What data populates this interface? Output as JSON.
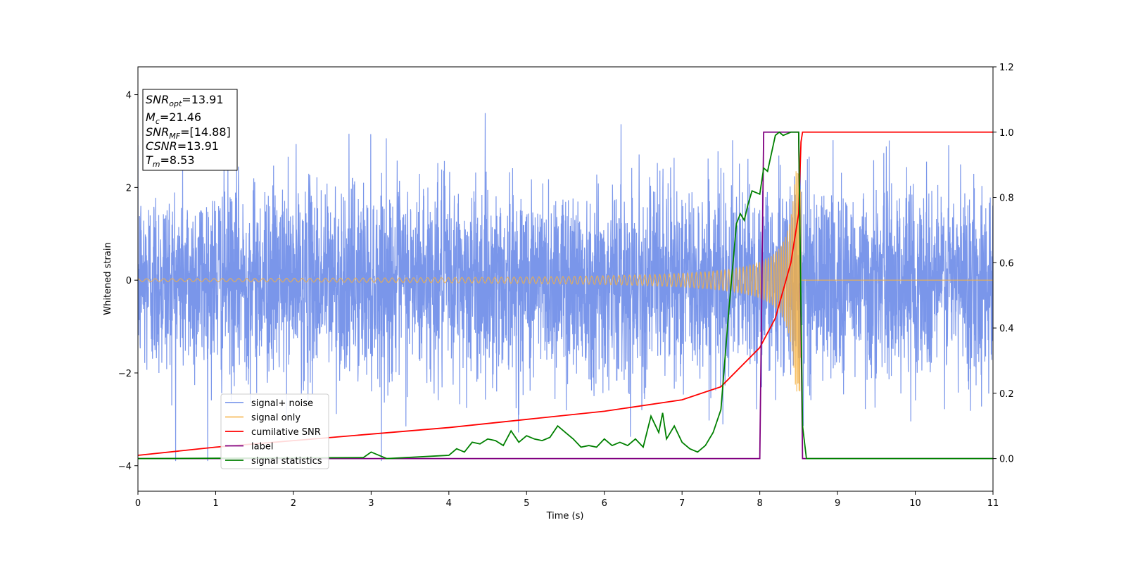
{
  "chart_data": {
    "type": "line",
    "xlabel": "Time (s)",
    "ylabel": "Whitened strain",
    "xlim": [
      0,
      11
    ],
    "ylim": [
      -4.55,
      4.6
    ],
    "y2lim": [
      -0.1,
      1.2
    ],
    "xticks": [
      0,
      1,
      2,
      3,
      4,
      5,
      6,
      7,
      8,
      9,
      10,
      11
    ],
    "yticks": [
      -4,
      -2,
      0,
      2,
      4
    ],
    "y2ticks": [
      "0.0",
      "0.2",
      "0.4",
      "0.6",
      "0.8",
      "1.0",
      "1.2"
    ],
    "grid": false,
    "legend_position": "lower-left",
    "colors": {
      "noise": "#6b8be8",
      "signal": "#f5b041",
      "csnr": "#ff0000",
      "label": "#800080",
      "stats": "#008000"
    },
    "series": [
      {
        "name": "signal+ noise",
        "axis": "left",
        "description": "white noise with std ~1, peaks to about +/-3.5",
        "amplitude_std": 1.0
      },
      {
        "name": "signal only",
        "axis": "left",
        "description": "chirp with amplitude growing to ~2.4 at merger time 8.53 s, zero afterwards",
        "peak_time": 8.53,
        "peak_amplitude": 2.4
      },
      {
        "name": "cumilative SNR",
        "axis": "right",
        "x": [
          0,
          1,
          2,
          3,
          4,
          5,
          6,
          7,
          7.5,
          8,
          8.2,
          8.4,
          8.5,
          8.53,
          8.55,
          11
        ],
        "y": [
          0.01,
          0.035,
          0.055,
          0.075,
          0.095,
          0.12,
          0.145,
          0.18,
          0.22,
          0.34,
          0.43,
          0.6,
          0.75,
          0.97,
          1.0,
          1.0
        ]
      },
      {
        "name": "label",
        "axis": "right",
        "x": [
          0,
          8.0,
          8.05,
          8.5,
          8.55,
          11
        ],
        "y": [
          0,
          0,
          1,
          1,
          0,
          0
        ]
      },
      {
        "name": "signal statistics",
        "axis": "right",
        "x": [
          0,
          2.9,
          3.0,
          3.2,
          4.0,
          4.1,
          4.2,
          4.3,
          4.4,
          4.5,
          4.6,
          4.7,
          4.8,
          4.9,
          5.0,
          5.1,
          5.2,
          5.3,
          5.4,
          5.5,
          5.6,
          5.7,
          5.8,
          5.9,
          6.0,
          6.1,
          6.2,
          6.3,
          6.4,
          6.5,
          6.6,
          6.7,
          6.75,
          6.8,
          6.9,
          7.0,
          7.1,
          7.2,
          7.3,
          7.4,
          7.5,
          7.6,
          7.7,
          7.75,
          7.8,
          7.85,
          7.9,
          8.0,
          8.05,
          8.1,
          8.2,
          8.25,
          8.3,
          8.4,
          8.5,
          8.55,
          8.6,
          8.7,
          11
        ],
        "y": [
          0,
          0.003,
          0.02,
          0,
          0.01,
          0.03,
          0.02,
          0.05,
          0.045,
          0.06,
          0.055,
          0.04,
          0.085,
          0.05,
          0.07,
          0.06,
          0.055,
          0.065,
          0.1,
          0.08,
          0.06,
          0.035,
          0.04,
          0.035,
          0.06,
          0.04,
          0.05,
          0.04,
          0.06,
          0.035,
          0.13,
          0.08,
          0.14,
          0.06,
          0.1,
          0.05,
          0.03,
          0.02,
          0.04,
          0.08,
          0.15,
          0.45,
          0.72,
          0.75,
          0.73,
          0.78,
          0.82,
          0.81,
          0.89,
          0.88,
          0.99,
          1.0,
          0.99,
          1.0,
          1.0,
          0.1,
          0.0,
          0.0,
          0.0
        ]
      }
    ],
    "annotation": {
      "lines": [
        {
          "name": "SNR",
          "sub": "opt",
          "value": "=13.91"
        },
        {
          "name": "M",
          "sub": "c",
          "value": "=21.46"
        },
        {
          "name": "SNR",
          "sub": "MF",
          "value": "=[14.88]"
        },
        {
          "name": "CSNR",
          "sub": "",
          "value": "=13.91"
        },
        {
          "name": "T",
          "sub": "m",
          "value": "=8.53"
        }
      ]
    }
  }
}
